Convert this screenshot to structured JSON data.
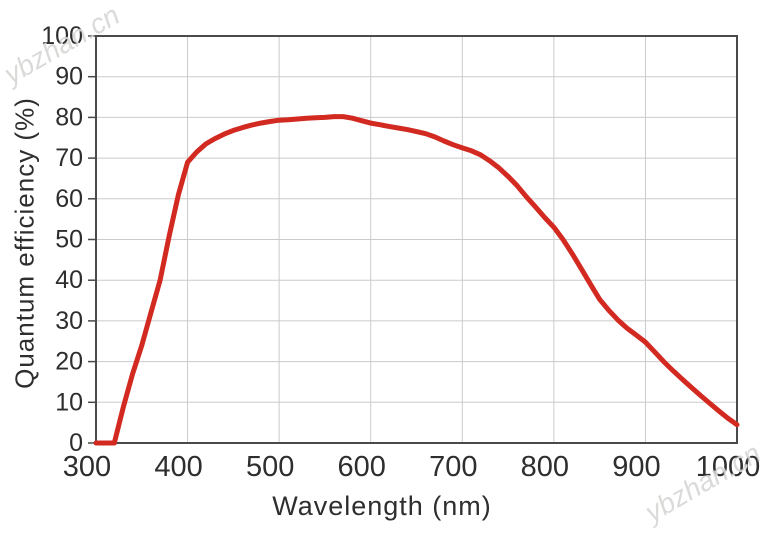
{
  "page": {
    "background": "#ffffff"
  },
  "watermarks": [
    {
      "text": "ybzhan.cn",
      "position": "top-left"
    },
    {
      "text": "ybzhan.cn",
      "position": "bottom-right"
    }
  ],
  "chart_data": {
    "type": "line",
    "title": "",
    "xlabel": "Wavelength (nm)",
    "ylabel": "Quantum efficiency (%)",
    "xlim": [
      300,
      1000
    ],
    "ylim": [
      0,
      100
    ],
    "xticks": [
      300,
      400,
      500,
      600,
      700,
      800,
      900,
      1000
    ],
    "yticks": [
      0,
      10,
      20,
      30,
      40,
      50,
      60,
      70,
      80,
      90,
      100
    ],
    "grid": true,
    "legend_position": "none",
    "axis_color": "#4a4a4a",
    "grid_color": "#cbcbcb",
    "text_color": "#2e2e2e",
    "series": [
      {
        "name": "Quantum efficiency",
        "color": "#d22a21",
        "x": [
          300,
          310,
          320,
          330,
          340,
          350,
          360,
          370,
          380,
          390,
          400,
          410,
          420,
          430,
          440,
          450,
          460,
          470,
          480,
          490,
          500,
          510,
          520,
          530,
          540,
          550,
          560,
          570,
          580,
          590,
          600,
          610,
          620,
          630,
          640,
          650,
          660,
          670,
          680,
          690,
          700,
          710,
          720,
          730,
          740,
          750,
          760,
          770,
          780,
          790,
          800,
          810,
          820,
          830,
          840,
          850,
          860,
          870,
          880,
          890,
          900,
          910,
          920,
          930,
          940,
          950,
          960,
          970,
          980,
          990,
          1000
        ],
        "y": [
          0,
          0,
          0,
          9,
          17,
          24,
          32,
          40,
          51,
          61,
          69,
          71.5,
          73.5,
          74.8,
          75.9,
          76.8,
          77.5,
          78.1,
          78.6,
          79,
          79.3,
          79.4,
          79.6,
          79.8,
          79.9,
          80,
          80.2,
          80.2,
          79.8,
          79.2,
          78.6,
          78.2,
          77.8,
          77.4,
          77,
          76.5,
          76,
          75.2,
          74.2,
          73.3,
          72.5,
          71.8,
          70.8,
          69.3,
          67.6,
          65.5,
          63.2,
          60.5,
          58,
          55.4,
          53,
          50,
          46.5,
          42.8,
          39,
          35.3,
          32.6,
          30.2,
          28.2,
          26.5,
          24.8,
          22.4,
          20,
          17.8,
          15.7,
          13.7,
          11.7,
          9.8,
          7.9,
          6.1,
          4.5
        ]
      }
    ]
  }
}
